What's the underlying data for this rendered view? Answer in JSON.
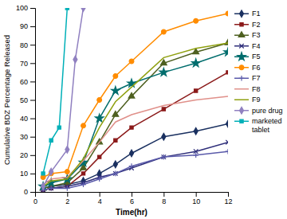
{
  "chart_data": {
    "type": "line",
    "xlabel": "Time(hr)",
    "ylabel": "Cumulative BDZ Percentage Released",
    "xlim": [
      0,
      12
    ],
    "ylim": [
      0,
      100
    ],
    "xticks": [
      0,
      2,
      4,
      6,
      8,
      10,
      12
    ],
    "yticks": [
      0,
      10,
      20,
      30,
      40,
      50,
      60,
      70,
      80,
      90,
      100
    ],
    "grid": false,
    "legend": "right",
    "series": [
      {
        "name": "F1",
        "color": "#1a3060",
        "marker": "diamond",
        "x": [
          0.5,
          1,
          2,
          3,
          4,
          5,
          6,
          8,
          10,
          12
        ],
        "values": [
          2,
          3,
          4,
          6,
          10,
          15,
          21,
          30,
          33,
          37
        ]
      },
      {
        "name": "F2",
        "color": "#8b1a1a",
        "marker": "square",
        "x": [
          0.5,
          1,
          2,
          3,
          4,
          5,
          6,
          8,
          10,
          12
        ],
        "values": [
          1,
          2,
          3,
          10,
          19,
          28,
          35,
          45,
          55,
          65
        ]
      },
      {
        "name": "F3",
        "color": "#4e6020",
        "marker": "triangle",
        "x": [
          0.5,
          1,
          2,
          3,
          4,
          5,
          6,
          8,
          10,
          12
        ],
        "values": [
          2,
          3,
          5,
          13,
          27,
          42,
          52,
          70,
          76,
          81
        ]
      },
      {
        "name": "F4",
        "color": "#2e2e7a",
        "marker": "x",
        "x": [
          0.5,
          1,
          2,
          3,
          4,
          5,
          6,
          8,
          10,
          12
        ],
        "values": [
          1,
          2,
          3,
          5,
          8,
          10,
          13,
          19,
          22,
          27
        ]
      },
      {
        "name": "F5",
        "color": "#006d6d",
        "marker": "star",
        "x": [
          0.5,
          1,
          2,
          3,
          4,
          5,
          6,
          8,
          10,
          12
        ],
        "values": [
          3,
          5,
          7,
          16,
          40,
          55,
          59,
          65,
          70,
          76
        ]
      },
      {
        "name": "F6",
        "color": "#ff8c00",
        "marker": "circle",
        "x": [
          0.5,
          1,
          2,
          3,
          4,
          5,
          6,
          8,
          10,
          12
        ],
        "values": [
          8,
          10,
          11,
          36,
          50,
          63,
          71,
          87,
          93,
          97
        ]
      },
      {
        "name": "F7",
        "color": "#5a5aaa",
        "marker": "plus",
        "x": [
          0.5,
          1,
          2,
          3,
          4,
          5,
          6,
          8,
          10,
          12
        ],
        "values": [
          1,
          2,
          2,
          4,
          7,
          10,
          14,
          19,
          20,
          22
        ]
      },
      {
        "name": "F8",
        "color": "#e0908a",
        "marker": "none",
        "x": [
          0.5,
          1,
          2,
          3,
          4,
          5,
          6,
          8,
          10,
          12
        ],
        "values": [
          4,
          7,
          8,
          17,
          27,
          38,
          42,
          47,
          50,
          52
        ]
      },
      {
        "name": "F9",
        "color": "#8fa010",
        "marker": "none",
        "x": [
          0.5,
          1,
          2,
          3,
          4,
          5,
          6,
          8,
          10,
          12
        ],
        "values": [
          3,
          6,
          7,
          18,
          35,
          49,
          57,
          73,
          78,
          81
        ]
      },
      {
        "name": "pure drug",
        "color": "#9080c0",
        "marker": "diamond",
        "x": [
          0.5,
          1,
          2,
          2.5,
          3
        ],
        "values": [
          3,
          11,
          23,
          72,
          100
        ]
      },
      {
        "name": "marketed\ntablet",
        "color": "#00b0b8",
        "marker": "square",
        "x": [
          0.5,
          1,
          1.5,
          2
        ],
        "values": [
          10,
          28,
          35,
          100
        ]
      }
    ]
  }
}
